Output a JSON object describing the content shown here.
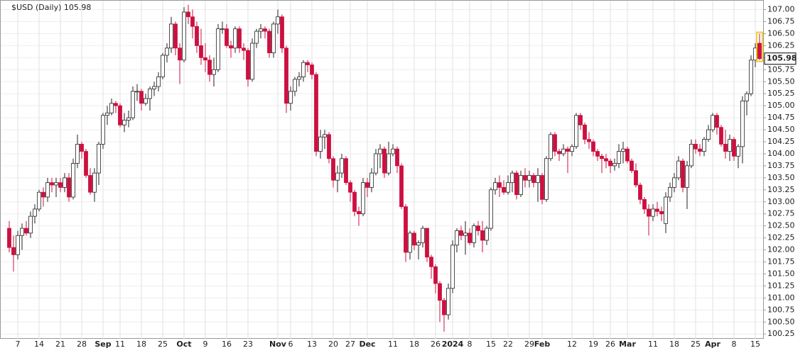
{
  "chart_data": {
    "type": "candlestick",
    "title": "$USD (Daily) 105.98",
    "ylim": [
      100.15,
      107.2
    ],
    "yticks": [
      {
        "value": 100.25,
        "label": "100.25"
      },
      {
        "value": 100.5,
        "label": "100.50"
      },
      {
        "value": 100.75,
        "label": "100.75"
      },
      {
        "value": 101,
        "label": "101.00"
      },
      {
        "value": 101.25,
        "label": "101.25"
      },
      {
        "value": 101.5,
        "label": "101.50"
      },
      {
        "value": 101.75,
        "label": "101.75"
      },
      {
        "value": 102,
        "label": "102.00"
      },
      {
        "value": 102.25,
        "label": "102.25"
      },
      {
        "value": 102.5,
        "label": "102.50"
      },
      {
        "value": 102.75,
        "label": "102.75"
      },
      {
        "value": 103,
        "label": "103.00"
      },
      {
        "value": 103.25,
        "label": "103.25"
      },
      {
        "value": 103.5,
        "label": "103.50"
      },
      {
        "value": 103.75,
        "label": "103.75"
      },
      {
        "value": 104,
        "label": "104.00"
      },
      {
        "value": 104.25,
        "label": "104.25"
      },
      {
        "value": 104.5,
        "label": "104.50"
      },
      {
        "value": 104.75,
        "label": "104.75"
      },
      {
        "value": 105,
        "label": "105.00"
      },
      {
        "value": 105.25,
        "label": "105.25"
      },
      {
        "value": 105.5,
        "label": "105.50"
      },
      {
        "value": 105.75,
        "label": "105.75"
      },
      {
        "value": 106,
        "label": "106.00"
      },
      {
        "value": 106.25,
        "label": "106.25"
      },
      {
        "value": 106.5,
        "label": "106.50"
      },
      {
        "value": 106.75,
        "label": "106.75"
      },
      {
        "value": 107,
        "label": "107.00"
      }
    ],
    "grid": true,
    "up_color": "#ffffff",
    "down_color": "#cc1040",
    "categories": [
      null,
      null,
      "7",
      null,
      null,
      null,
      null,
      "14",
      null,
      null,
      null,
      null,
      "21",
      null,
      null,
      null,
      null,
      "28",
      null,
      null,
      null,
      null,
      "Sep",
      null,
      null,
      null,
      "11",
      null,
      null,
      null,
      null,
      "18",
      null,
      null,
      null,
      null,
      "25",
      null,
      null,
      null,
      null,
      "Oct",
      null,
      null,
      null,
      null,
      "9",
      null,
      null,
      null,
      null,
      "16",
      null,
      null,
      null,
      null,
      "23",
      null,
      null,
      null,
      null,
      null,
      null,
      "Nov",
      null,
      null,
      "6",
      null,
      null,
      null,
      null,
      "13",
      null,
      null,
      null,
      null,
      "20",
      null,
      null,
      null,
      "27",
      null,
      null,
      null,
      "Dec",
      null,
      null,
      null,
      null,
      null,
      "11",
      null,
      null,
      null,
      null,
      "18",
      null,
      null,
      null,
      null,
      "26",
      null,
      null,
      null,
      "2024",
      null,
      null,
      null,
      "8",
      null,
      null,
      null,
      null,
      "15",
      null,
      null,
      null,
      "22",
      null,
      null,
      null,
      null,
      "29",
      null,
      null,
      "Feb",
      null,
      null,
      null,
      null,
      null,
      null,
      "12",
      null,
      null,
      null,
      null,
      "19",
      null,
      null,
      null,
      "26",
      null,
      null,
      null,
      "Mar",
      null,
      null,
      null,
      null,
      null,
      "11",
      null,
      null,
      null,
      null,
      "18",
      null,
      null,
      null,
      null,
      "25",
      null,
      null,
      null,
      "Apr",
      null,
      null,
      null,
      null,
      "8",
      null,
      null,
      null,
      null,
      "15",
      null
    ],
    "candles": [
      [
        102.45,
        102.6,
        101.95,
        102.05
      ],
      [
        102.05,
        102.3,
        101.55,
        101.9
      ],
      [
        101.9,
        102.4,
        101.8,
        102.3
      ],
      [
        102.3,
        102.55,
        102.0,
        102.45
      ],
      [
        102.45,
        102.6,
        102.3,
        102.35
      ],
      [
        102.35,
        102.8,
        102.25,
        102.7
      ],
      [
        102.7,
        102.95,
        102.55,
        102.85
      ],
      [
        102.85,
        103.25,
        102.8,
        103.2
      ],
      [
        103.2,
        103.3,
        102.9,
        103.1
      ],
      [
        103.1,
        103.5,
        103.0,
        103.4
      ],
      [
        103.4,
        103.5,
        103.2,
        103.35
      ],
      [
        103.35,
        103.5,
        103.1,
        103.4
      ],
      [
        103.4,
        103.5,
        103.2,
        103.3
      ],
      [
        103.3,
        103.6,
        103.2,
        103.5
      ],
      [
        103.5,
        103.6,
        103.0,
        103.1
      ],
      [
        103.1,
        103.9,
        103.05,
        103.8
      ],
      [
        103.8,
        104.4,
        103.7,
        104.2
      ],
      [
        104.2,
        104.25,
        103.9,
        104.05
      ],
      [
        104.05,
        104.1,
        103.5,
        103.55
      ],
      [
        103.55,
        103.7,
        103.15,
        103.2
      ],
      [
        103.2,
        103.7,
        103.0,
        103.6
      ],
      [
        103.6,
        104.25,
        103.35,
        104.2
      ],
      [
        104.2,
        104.85,
        104.1,
        104.8
      ],
      [
        104.8,
        105.0,
        104.6,
        104.85
      ],
      [
        104.85,
        105.15,
        104.8,
        105.05
      ],
      [
        105.05,
        105.1,
        104.85,
        105.0
      ],
      [
        105.0,
        105.05,
        104.55,
        104.6
      ],
      [
        104.6,
        104.85,
        104.45,
        104.7
      ],
      [
        104.7,
        104.9,
        104.55,
        104.75
      ],
      [
        104.75,
        105.4,
        104.7,
        105.3
      ],
      [
        105.3,
        105.45,
        105.1,
        105.3
      ],
      [
        105.3,
        105.35,
        104.9,
        105.05
      ],
      [
        105.05,
        105.25,
        105.0,
        105.15
      ],
      [
        105.15,
        105.4,
        104.9,
        105.35
      ],
      [
        105.35,
        105.5,
        105.2,
        105.4
      ],
      [
        105.4,
        105.7,
        105.3,
        105.6
      ],
      [
        105.6,
        106.1,
        105.55,
        106.05
      ],
      [
        106.05,
        106.3,
        105.9,
        106.2
      ],
      [
        106.2,
        106.85,
        106.1,
        106.7
      ],
      [
        106.7,
        106.75,
        106.05,
        106.2
      ],
      [
        106.2,
        106.3,
        105.45,
        105.95
      ],
      [
        105.95,
        107.05,
        105.9,
        106.95
      ],
      [
        106.95,
        107.1,
        106.7,
        106.85
      ],
      [
        106.85,
        107.0,
        106.4,
        106.65
      ],
      [
        106.65,
        106.75,
        106.1,
        106.25
      ],
      [
        106.25,
        106.6,
        105.85,
        106.0
      ],
      [
        106.0,
        106.3,
        105.7,
        105.95
      ],
      [
        105.95,
        106.05,
        105.5,
        105.65
      ],
      [
        105.65,
        106.0,
        105.4,
        105.75
      ],
      [
        105.75,
        106.7,
        105.7,
        106.6
      ],
      [
        106.6,
        106.75,
        106.5,
        106.6
      ],
      [
        106.6,
        106.7,
        106.2,
        106.25
      ],
      [
        106.25,
        106.35,
        106.0,
        106.2
      ],
      [
        106.2,
        106.65,
        106.1,
        106.6
      ],
      [
        106.6,
        106.65,
        106.1,
        106.2
      ],
      [
        106.2,
        106.3,
        105.95,
        106.15
      ],
      [
        106.15,
        106.2,
        105.4,
        105.55
      ],
      [
        105.55,
        106.4,
        105.5,
        106.3
      ],
      [
        106.3,
        106.6,
        106.2,
        106.55
      ],
      [
        106.55,
        106.7,
        106.4,
        106.6
      ],
      [
        106.6,
        106.65,
        106.4,
        106.55
      ],
      [
        106.55,
        106.6,
        106.0,
        106.1
      ],
      [
        106.1,
        106.75,
        106.0,
        106.7
      ],
      [
        106.7,
        107.0,
        106.5,
        106.85
      ],
      [
        106.85,
        106.9,
        106.1,
        106.2
      ],
      [
        106.2,
        106.25,
        104.85,
        105.05
      ],
      [
        105.05,
        105.4,
        104.9,
        105.3
      ],
      [
        105.3,
        105.6,
        105.2,
        105.55
      ],
      [
        105.55,
        105.7,
        105.4,
        105.6
      ],
      [
        105.6,
        105.95,
        105.5,
        105.9
      ],
      [
        105.9,
        105.95,
        105.7,
        105.85
      ],
      [
        105.85,
        105.9,
        105.55,
        105.65
      ],
      [
        105.65,
        105.7,
        103.95,
        104.05
      ],
      [
        104.05,
        104.5,
        103.9,
        104.35
      ],
      [
        104.35,
        104.5,
        104.1,
        104.4
      ],
      [
        104.4,
        104.45,
        103.8,
        103.9
      ],
      [
        103.9,
        103.95,
        103.3,
        103.45
      ],
      [
        103.45,
        103.75,
        103.2,
        103.6
      ],
      [
        103.6,
        104.0,
        103.5,
        103.9
      ],
      [
        103.9,
        103.95,
        103.35,
        103.4
      ],
      [
        103.4,
        103.45,
        103.0,
        103.2
      ],
      [
        103.2,
        103.25,
        102.7,
        102.8
      ],
      [
        102.8,
        102.9,
        102.5,
        102.75
      ],
      [
        102.75,
        103.5,
        102.7,
        103.4
      ],
      [
        103.4,
        103.5,
        103.1,
        103.3
      ],
      [
        103.3,
        103.7,
        103.2,
        103.6
      ],
      [
        103.6,
        104.1,
        103.55,
        104.0
      ],
      [
        104.0,
        104.2,
        103.7,
        104.1
      ],
      [
        104.1,
        104.15,
        103.5,
        103.6
      ],
      [
        103.6,
        104.25,
        103.55,
        104.0
      ],
      [
        104.0,
        104.2,
        103.95,
        104.1
      ],
      [
        104.1,
        104.15,
        103.6,
        103.75
      ],
      [
        103.75,
        103.8,
        102.85,
        102.9
      ],
      [
        102.9,
        102.95,
        101.75,
        101.95
      ],
      [
        101.95,
        102.4,
        101.8,
        102.35
      ],
      [
        102.35,
        102.4,
        102.0,
        102.1
      ],
      [
        102.1,
        102.2,
        101.8,
        102.15
      ],
      [
        102.15,
        102.5,
        102.05,
        102.45
      ],
      [
        102.45,
        102.45,
        101.75,
        101.85
      ],
      [
        101.85,
        101.9,
        101.4,
        101.65
      ],
      [
        101.65,
        101.7,
        101.1,
        101.3
      ],
      [
        101.3,
        101.35,
        100.5,
        100.95
      ],
      [
        100.95,
        101.0,
        100.3,
        100.65
      ],
      [
        100.65,
        101.3,
        100.55,
        101.2
      ],
      [
        101.2,
        102.2,
        101.1,
        102.1
      ],
      [
        102.1,
        102.45,
        101.95,
        102.4
      ],
      [
        102.4,
        102.5,
        102.2,
        102.3
      ],
      [
        102.3,
        102.6,
        101.9,
        102.35
      ],
      [
        102.35,
        102.45,
        102.1,
        102.15
      ],
      [
        102.15,
        102.55,
        102.05,
        102.5
      ],
      [
        102.5,
        102.6,
        102.3,
        102.4
      ],
      [
        102.4,
        102.6,
        101.95,
        102.2
      ],
      [
        102.2,
        102.5,
        102.1,
        102.45
      ],
      [
        102.45,
        103.3,
        102.4,
        103.25
      ],
      [
        103.25,
        103.5,
        103.15,
        103.4
      ],
      [
        103.4,
        103.55,
        103.1,
        103.3
      ],
      [
        103.3,
        103.45,
        103.15,
        103.2
      ],
      [
        103.2,
        103.55,
        103.15,
        103.4
      ],
      [
        103.4,
        103.65,
        103.2,
        103.6
      ],
      [
        103.6,
        103.65,
        103.05,
        103.15
      ],
      [
        103.15,
        103.65,
        103.1,
        103.55
      ],
      [
        103.55,
        103.7,
        103.3,
        103.45
      ],
      [
        103.45,
        103.65,
        103.3,
        103.55
      ],
      [
        103.55,
        103.6,
        103.3,
        103.4
      ],
      [
        103.4,
        103.7,
        103.0,
        103.55
      ],
      [
        103.55,
        103.6,
        102.95,
        103.05
      ],
      [
        103.05,
        103.95,
        103.0,
        103.9
      ],
      [
        103.9,
        104.45,
        103.85,
        104.4
      ],
      [
        104.4,
        104.45,
        103.95,
        104.05
      ],
      [
        104.05,
        104.1,
        103.85,
        104.0
      ],
      [
        104.0,
        104.2,
        103.95,
        104.1
      ],
      [
        104.1,
        104.15,
        103.6,
        104.05
      ],
      [
        104.05,
        104.2,
        103.95,
        104.15
      ],
      [
        104.15,
        104.85,
        104.1,
        104.8
      ],
      [
        104.8,
        104.85,
        104.5,
        104.6
      ],
      [
        104.6,
        104.65,
        104.2,
        104.3
      ],
      [
        104.3,
        104.45,
        104.1,
        104.25
      ],
      [
        104.25,
        104.3,
        103.95,
        104.05
      ],
      [
        104.05,
        104.1,
        103.85,
        103.95
      ],
      [
        103.95,
        104.0,
        103.6,
        103.9
      ],
      [
        103.9,
        104.0,
        103.7,
        103.85
      ],
      [
        103.85,
        103.9,
        103.6,
        103.75
      ],
      [
        103.75,
        103.9,
        103.65,
        103.8
      ],
      [
        103.8,
        104.2,
        103.7,
        104.05
      ],
      [
        104.05,
        104.25,
        103.8,
        104.1
      ],
      [
        104.1,
        104.15,
        103.8,
        103.85
      ],
      [
        103.85,
        103.9,
        103.6,
        103.65
      ],
      [
        103.65,
        103.8,
        103.3,
        103.35
      ],
      [
        103.35,
        103.4,
        102.95,
        103.05
      ],
      [
        103.05,
        103.1,
        102.75,
        102.85
      ],
      [
        102.85,
        102.95,
        102.3,
        102.7
      ],
      [
        102.7,
        102.95,
        102.6,
        102.85
      ],
      [
        102.85,
        103.0,
        102.7,
        102.8
      ],
      [
        102.8,
        102.9,
        102.6,
        102.75
      ],
      [
        102.55,
        103.2,
        102.35,
        103.1
      ],
      [
        103.1,
        103.4,
        103.0,
        103.3
      ],
      [
        103.3,
        103.6,
        103.2,
        103.5
      ],
      [
        103.5,
        103.95,
        103.45,
        103.85
      ],
      [
        103.85,
        103.9,
        103.2,
        103.3
      ],
      [
        103.3,
        103.85,
        102.85,
        103.75
      ],
      [
        103.75,
        104.3,
        103.7,
        104.2
      ],
      [
        104.2,
        104.3,
        104.0,
        104.1
      ],
      [
        104.1,
        104.2,
        103.95,
        104.05
      ],
      [
        104.05,
        104.35,
        103.95,
        104.3
      ],
      [
        104.3,
        104.6,
        104.25,
        104.5
      ],
      [
        104.5,
        104.85,
        104.45,
        104.8
      ],
      [
        104.8,
        104.85,
        104.4,
        104.55
      ],
      [
        104.55,
        104.6,
        104.15,
        104.2
      ],
      [
        104.2,
        104.5,
        103.9,
        104.05
      ],
      [
        104.05,
        104.4,
        103.85,
        104.3
      ],
      [
        104.3,
        104.35,
        103.85,
        103.95
      ],
      [
        103.95,
        104.2,
        103.7,
        104.15
      ],
      [
        104.15,
        105.2,
        103.8,
        105.1
      ],
      [
        105.1,
        105.3,
        104.8,
        105.25
      ],
      [
        105.25,
        106.05,
        105.2,
        105.95
      ],
      [
        105.95,
        106.3,
        105.8,
        106.2
      ],
      [
        106.3,
        106.5,
        105.95,
        105.98
      ]
    ]
  }
}
